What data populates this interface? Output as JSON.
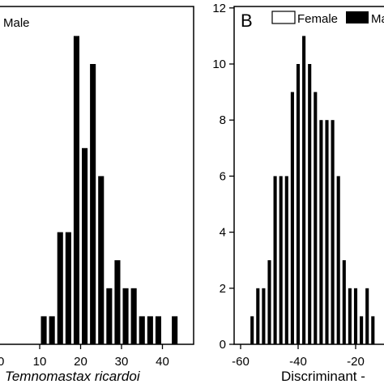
{
  "chart_data": [
    {
      "type": "bar",
      "panel_label": "",
      "legend": [
        {
          "name": "Male",
          "fill": "#000000"
        }
      ],
      "x_ticks": [
        10,
        20,
        30,
        40
      ],
      "xlim": [
        0,
        45
      ],
      "xlabel": "Temnomastax ricardoi",
      "x": [
        11,
        13,
        15,
        17,
        19,
        21,
        23,
        25,
        27,
        29,
        31,
        33,
        35,
        37,
        39,
        41,
        43
      ],
      "values": [
        1,
        1,
        4,
        4,
        11,
        7,
        10,
        6,
        2,
        3,
        2,
        2,
        1,
        1,
        1,
        0,
        1
      ]
    },
    {
      "type": "bar",
      "panel_label": "B",
      "legend": [
        {
          "name": "Female",
          "fill": "#ffffff"
        },
        {
          "name": "Male",
          "fill": "#000000"
        }
      ],
      "y_ticks": [
        0,
        2,
        4,
        6,
        8,
        10,
        12
      ],
      "ylim": [
        0,
        12
      ],
      "x_ticks": [
        -60,
        -40,
        -20
      ],
      "xlim": [
        -64,
        -8
      ],
      "xlabel": "Discriminant - ",
      "x": [
        -56,
        -54,
        -52,
        -50,
        -48,
        -46,
        -44,
        -42,
        -40,
        -38,
        -36,
        -34,
        -32,
        -30,
        -28,
        -26,
        -24,
        -22,
        -20,
        -18,
        -16,
        -14
      ],
      "values": [
        1,
        2,
        2,
        3,
        6,
        6,
        6,
        9,
        10,
        11,
        10,
        9,
        8,
        8,
        8,
        6,
        3,
        2,
        2,
        1,
        2,
        1
      ]
    }
  ]
}
